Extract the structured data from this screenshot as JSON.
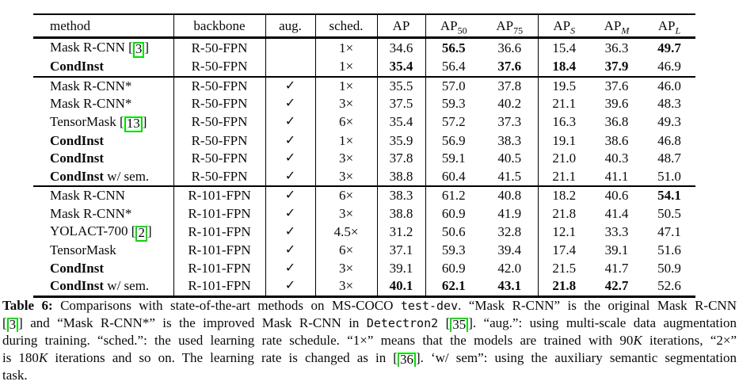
{
  "colors": {
    "citation_box": "#00dd00",
    "text": "#0a0a0a",
    "background": "#ffffff"
  },
  "table": {
    "headers": [
      {
        "label": "method",
        "align": "left"
      },
      {
        "label": "backbone"
      },
      {
        "label": "aug."
      },
      {
        "label": "sched."
      },
      {
        "base": "AP",
        "sub": ""
      },
      {
        "base": "AP",
        "sub": "50",
        "italic_sub": false
      },
      {
        "base": "AP",
        "sub": "75",
        "italic_sub": false
      },
      {
        "base": "AP",
        "sub": "S",
        "italic_sub": true
      },
      {
        "base": "AP",
        "sub": "M",
        "italic_sub": true
      },
      {
        "base": "AP",
        "sub": "L",
        "italic_sub": true
      }
    ],
    "checkmark": "✓",
    "rows": [
      {
        "method": [
          {
            "t": "Mask R-CNN "
          },
          {
            "cite": "3"
          }
        ],
        "backbone": "R-50-FPN",
        "aug": false,
        "sched": "1×",
        "vals": [
          "34.6",
          "56.5",
          "36.6",
          "15.4",
          "36.3",
          "49.7"
        ],
        "bold": [
          false,
          true,
          false,
          false,
          false,
          true
        ],
        "group": false
      },
      {
        "method": [
          {
            "t": "CondInst",
            "s": "b"
          }
        ],
        "backbone": "R-50-FPN",
        "aug": false,
        "sched": "1×",
        "vals": [
          "35.4",
          "56.4",
          "37.6",
          "18.4",
          "37.9",
          "46.9"
        ],
        "bold": [
          true,
          false,
          true,
          true,
          true,
          false
        ],
        "group": false
      },
      {
        "method": [
          {
            "t": "Mask R-CNN*"
          }
        ],
        "backbone": "R-50-FPN",
        "aug": true,
        "sched": "1×",
        "vals": [
          "35.5",
          "57.0",
          "37.8",
          "19.5",
          "37.6",
          "46.0"
        ],
        "bold": [
          false,
          false,
          false,
          false,
          false,
          false
        ],
        "group": true
      },
      {
        "method": [
          {
            "t": "Mask R-CNN*"
          }
        ],
        "backbone": "R-50-FPN",
        "aug": true,
        "sched": "3×",
        "vals": [
          "37.5",
          "59.3",
          "40.2",
          "21.1",
          "39.6",
          "48.3"
        ],
        "bold": [
          false,
          false,
          false,
          false,
          false,
          false
        ],
        "group": false
      },
      {
        "method": [
          {
            "t": "TensorMask "
          },
          {
            "cite": "13"
          }
        ],
        "backbone": "R-50-FPN",
        "aug": true,
        "sched": "6×",
        "vals": [
          "35.4",
          "57.2",
          "37.3",
          "16.3",
          "36.8",
          "49.3"
        ],
        "bold": [
          false,
          false,
          false,
          false,
          false,
          false
        ],
        "group": false
      },
      {
        "method": [
          {
            "t": "CondInst",
            "s": "b"
          }
        ],
        "backbone": "R-50-FPN",
        "aug": true,
        "sched": "1×",
        "vals": [
          "35.9",
          "56.9",
          "38.3",
          "19.1",
          "38.6",
          "46.8"
        ],
        "bold": [
          false,
          false,
          false,
          false,
          false,
          false
        ],
        "group": false
      },
      {
        "method": [
          {
            "t": "CondInst",
            "s": "b"
          }
        ],
        "backbone": "R-50-FPN",
        "aug": true,
        "sched": "3×",
        "vals": [
          "37.8",
          "59.1",
          "40.5",
          "21.0",
          "40.3",
          "48.7"
        ],
        "bold": [
          false,
          false,
          false,
          false,
          false,
          false
        ],
        "group": false
      },
      {
        "method": [
          {
            "t": "CondInst",
            "s": "b"
          },
          {
            "t": " w/ sem."
          }
        ],
        "backbone": "R-50-FPN",
        "aug": true,
        "sched": "3×",
        "vals": [
          "38.8",
          "60.4",
          "41.5",
          "21.1",
          "41.1",
          "51.0"
        ],
        "bold": [
          false,
          false,
          false,
          false,
          false,
          false
        ],
        "group": false
      },
      {
        "method": [
          {
            "t": "Mask R-CNN"
          }
        ],
        "backbone": "R-101-FPN",
        "aug": true,
        "sched": "6×",
        "vals": [
          "38.3",
          "61.2",
          "40.8",
          "18.2",
          "40.6",
          "54.1"
        ],
        "bold": [
          false,
          false,
          false,
          false,
          false,
          true
        ],
        "group": true
      },
      {
        "method": [
          {
            "t": "Mask R-CNN*"
          }
        ],
        "backbone": "R-101-FPN",
        "aug": true,
        "sched": "3×",
        "vals": [
          "38.8",
          "60.9",
          "41.9",
          "21.8",
          "41.4",
          "50.5"
        ],
        "bold": [
          false,
          false,
          false,
          false,
          false,
          false
        ],
        "group": false
      },
      {
        "method": [
          {
            "t": "YOLACT-700 "
          },
          {
            "cite": "2"
          }
        ],
        "backbone": "R-101-FPN",
        "aug": true,
        "sched": "4.5×",
        "vals": [
          "31.2",
          "50.6",
          "32.8",
          "12.1",
          "33.3",
          "47.1"
        ],
        "bold": [
          false,
          false,
          false,
          false,
          false,
          false
        ],
        "group": false
      },
      {
        "method": [
          {
            "t": "TensorMask"
          }
        ],
        "backbone": "R-101-FPN",
        "aug": true,
        "sched": "6×",
        "vals": [
          "37.1",
          "59.3",
          "39.4",
          "17.4",
          "39.1",
          "51.6"
        ],
        "bold": [
          false,
          false,
          false,
          false,
          false,
          false
        ],
        "group": false
      },
      {
        "method": [
          {
            "t": "CondInst",
            "s": "b"
          }
        ],
        "backbone": "R-101-FPN",
        "aug": true,
        "sched": "3×",
        "vals": [
          "39.1",
          "60.9",
          "42.0",
          "21.5",
          "41.7",
          "50.9"
        ],
        "bold": [
          false,
          false,
          false,
          false,
          false,
          false
        ],
        "group": false
      },
      {
        "method": [
          {
            "t": "CondInst",
            "s": "b"
          },
          {
            "t": " w/ sem."
          }
        ],
        "backbone": "R-101-FPN",
        "aug": true,
        "sched": "3×",
        "vals": [
          "40.1",
          "62.1",
          "43.1",
          "21.8",
          "42.7",
          "52.6"
        ],
        "bold": [
          true,
          true,
          true,
          true,
          true,
          false
        ],
        "group": false
      }
    ]
  },
  "caption": {
    "lines": [
      [
        {
          "t": "Table 6:",
          "s": "b"
        },
        {
          "t": " Comparisons with state-of-the-art methods on MS-COCO "
        },
        {
          "t": "test-dev",
          "s": "m"
        },
        {
          "t": ". “Mask R-CNN” is the original Mask R-CNN"
        }
      ],
      [
        {
          "cite": "3"
        },
        {
          "t": " and “Mask R-CNN*” is the improved Mask R-CNN in "
        },
        {
          "t": "Detectron2",
          "s": "m"
        },
        {
          "t": " "
        },
        {
          "cite": "35"
        },
        {
          "t": ". “aug.”: using multi-scale data augmentation"
        }
      ],
      [
        {
          "t": "during training. “sched.”: the used learning rate schedule. “1×” means that the models are trained with 90"
        },
        {
          "t": "K",
          "s": "i"
        },
        {
          "t": " iterations, “2×”"
        }
      ],
      [
        {
          "t": "is 180"
        },
        {
          "t": "K",
          "s": "i"
        },
        {
          "t": " iterations and so on. The learning rate is changed as in "
        },
        {
          "cite": "36"
        },
        {
          "t": ". ‘w/ sem”: using the auxiliary semantic segmentation"
        }
      ],
      [
        {
          "t": "task."
        }
      ]
    ]
  }
}
